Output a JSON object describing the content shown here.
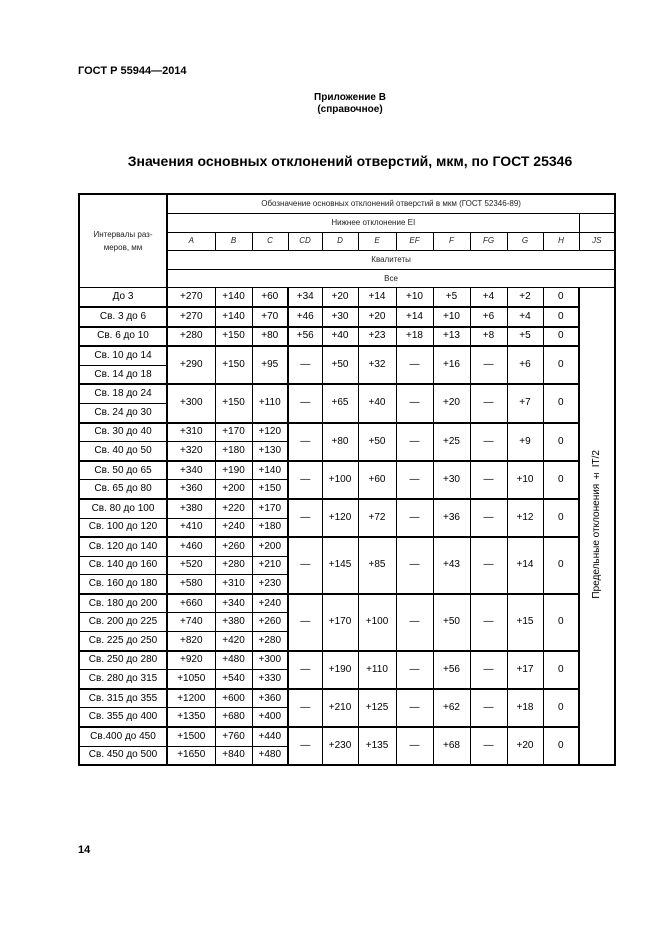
{
  "header": {
    "standard": "ГОСТ Р 55944—2014"
  },
  "annex": {
    "label": "Приложение В",
    "type": "(справочное)"
  },
  "title": "Значения основных отклонений отверстий, мкм, по ГОСТ 25346",
  "table": {
    "row_header": "Интервалы раз-меров, мм",
    "top_header": "Обозначение основных отклонений отверстий в мкм (ГОСТ 52346-89)",
    "lower_dev": "Нижнее отклонение EI",
    "columns": [
      "A",
      "B",
      "C",
      "CD",
      "D",
      "E",
      "EF",
      "F",
      "FG",
      "G",
      "H",
      "JS"
    ],
    "qualities": "Квалитеты",
    "all": "Все",
    "js_note": "Предельные отклонения ± IT/2",
    "groups": [
      {
        "rows": [
          "До 3"
        ],
        "abc": [
          [
            "+270",
            "+140",
            "+60"
          ]
        ],
        "rest": [
          "+34",
          "+20",
          "+14",
          "+10",
          "+5",
          "+4",
          "+2",
          "0"
        ]
      },
      {
        "rows": [
          "Св. 3 до 6"
        ],
        "abc": [
          [
            "+270",
            "+140",
            "+70"
          ]
        ],
        "rest": [
          "+46",
          "+30",
          "+20",
          "+14",
          "+10",
          "+6",
          "+4",
          "0"
        ]
      },
      {
        "rows": [
          "Св. 6 до 10"
        ],
        "abc": [
          [
            "+280",
            "+150",
            "+80"
          ]
        ],
        "rest": [
          "+56",
          "+40",
          "+23",
          "+18",
          "+13",
          "+8",
          "+5",
          "0"
        ]
      },
      {
        "rows": [
          "Св. 10 до 14",
          "Св. 14 до 18"
        ],
        "abc": [
          [
            "+290",
            "+150",
            "+95"
          ]
        ],
        "rest": [
          "—",
          "+50",
          "+32",
          "—",
          "+16",
          "—",
          "+6",
          "0"
        ]
      },
      {
        "rows": [
          "Св. 18 до 24",
          "Св. 24 до 30"
        ],
        "abc": [
          [
            "+300",
            "+150",
            "+110"
          ]
        ],
        "rest": [
          "—",
          "+65",
          "+40",
          "—",
          "+20",
          "—",
          "+7",
          "0"
        ]
      },
      {
        "rows": [
          "Св. 30 до 40",
          "Св. 40 до 50"
        ],
        "abc": [
          [
            "+310",
            "+170",
            "+120"
          ],
          [
            "+320",
            "+180",
            "+130"
          ]
        ],
        "rest": [
          "—",
          "+80",
          "+50",
          "—",
          "+25",
          "—",
          "+9",
          "0"
        ]
      },
      {
        "rows": [
          "Св. 50 до 65",
          "Св. 65 до 80"
        ],
        "abc": [
          [
            "+340",
            "+190",
            "+140"
          ],
          [
            "+360",
            "+200",
            "+150"
          ]
        ],
        "rest": [
          "—",
          "+100",
          "+60",
          "—",
          "+30",
          "—",
          "+10",
          "0"
        ]
      },
      {
        "rows": [
          "Св. 80 до 100",
          "Св. 100 до 120"
        ],
        "abc": [
          [
            "+380",
            "+220",
            "+170"
          ],
          [
            "+410",
            "+240",
            "+180"
          ]
        ],
        "rest": [
          "—",
          "+120",
          "+72",
          "—",
          "+36",
          "—",
          "+12",
          "0"
        ]
      },
      {
        "rows": [
          "Св. 120 до 140",
          "Св. 140 до 160",
          "Св. 160 до 180"
        ],
        "abc": [
          [
            "+460",
            "+260",
            "+200"
          ],
          [
            "+520",
            "+280",
            "+210"
          ],
          [
            "+580",
            "+310",
            "+230"
          ]
        ],
        "rest": [
          "—",
          "+145",
          "+85",
          "—",
          "+43",
          "—",
          "+14",
          "0"
        ]
      },
      {
        "rows": [
          "Св. 180 до 200",
          "Св. 200 до 225",
          "Св. 225 до 250"
        ],
        "abc": [
          [
            "+660",
            "+340",
            "+240"
          ],
          [
            "+740",
            "+380",
            "+260"
          ],
          [
            "+820",
            "+420",
            "+280"
          ]
        ],
        "rest": [
          "—",
          "+170",
          "+100",
          "—",
          "+50",
          "—",
          "+15",
          "0"
        ]
      },
      {
        "rows": [
          "Св. 250 до 280",
          "Св. 280 до 315"
        ],
        "abc": [
          [
            "+920",
            "+480",
            "+300"
          ],
          [
            "+1050",
            "+540",
            "+330"
          ]
        ],
        "rest": [
          "—",
          "+190",
          "+110",
          "—",
          "+56",
          "—",
          "+17",
          "0"
        ]
      },
      {
        "rows": [
          "Св. 315 до 355",
          "Св. 355 до 400"
        ],
        "abc": [
          [
            "+1200",
            "+600",
            "+360"
          ],
          [
            "+1350",
            "+680",
            "+400"
          ]
        ],
        "rest": [
          "—",
          "+210",
          "+125",
          "—",
          "+62",
          "—",
          "+18",
          "0"
        ]
      },
      {
        "rows": [
          "Св.400 до 450",
          "Св. 450 до 500"
        ],
        "abc": [
          [
            "+1500",
            "+760",
            "+440"
          ],
          [
            "+1650",
            "+840",
            "+480"
          ]
        ],
        "rest": [
          "—",
          "+230",
          "+135",
          "—",
          "+68",
          "—",
          "+20",
          "0"
        ]
      }
    ]
  },
  "page_number": "14"
}
